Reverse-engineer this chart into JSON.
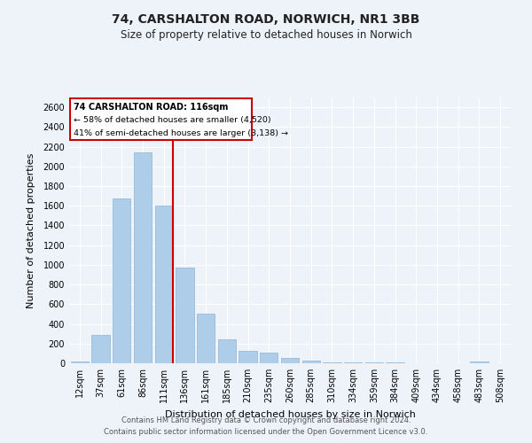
{
  "title": "74, CARSHALTON ROAD, NORWICH, NR1 3BB",
  "subtitle": "Size of property relative to detached houses in Norwich",
  "xlabel": "Distribution of detached houses by size in Norwich",
  "ylabel": "Number of detached properties",
  "categories": [
    "12sqm",
    "37sqm",
    "61sqm",
    "86sqm",
    "111sqm",
    "136sqm",
    "161sqm",
    "185sqm",
    "210sqm",
    "235sqm",
    "260sqm",
    "285sqm",
    "310sqm",
    "334sqm",
    "359sqm",
    "384sqm",
    "409sqm",
    "434sqm",
    "458sqm",
    "483sqm",
    "508sqm"
  ],
  "values": [
    20,
    290,
    1670,
    2140,
    1600,
    970,
    500,
    240,
    130,
    105,
    50,
    25,
    12,
    8,
    5,
    5,
    3,
    3,
    3,
    20,
    3
  ],
  "bar_color": "#aecde8",
  "bar_edge_color": "#8ab4d8",
  "annotation_text_line1": "74 CARSHALTON ROAD: 116sqm",
  "annotation_text_line2": "← 58% of detached houses are smaller (4,520)",
  "annotation_text_line3": "41% of semi-detached houses are larger (3,138) →",
  "annotation_box_color": "#cc0000",
  "ylim": [
    0,
    2700
  ],
  "yticks": [
    0,
    200,
    400,
    600,
    800,
    1000,
    1200,
    1400,
    1600,
    1800,
    2000,
    2200,
    2400,
    2600
  ],
  "background_color": "#eef2f9",
  "plot_bg_color": "#eef2f9",
  "grid_color": "#ffffff",
  "footer_line1": "Contains HM Land Registry data © Crown copyright and database right 2024.",
  "footer_line2": "Contains public sector information licensed under the Open Government Licence v3.0."
}
